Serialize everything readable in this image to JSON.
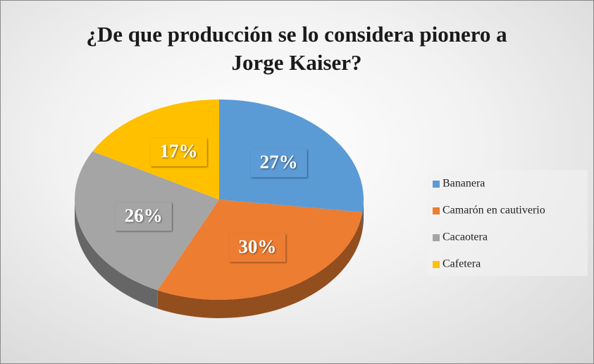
{
  "chart_data": {
    "type": "pie",
    "title": "¿De que producción se lo considera pionero a Jorge Kaiser?",
    "categories": [
      "Bananera",
      "Camarón en cautiverio",
      "Cacaotera",
      "Cafetera"
    ],
    "values": [
      27,
      30,
      26,
      17
    ],
    "value_labels": [
      "27%",
      "30%",
      "26%",
      "17%"
    ],
    "colors": [
      "#5b9bd5",
      "#ed7d31",
      "#a5a5a5",
      "#ffc000"
    ],
    "legend": "right"
  }
}
